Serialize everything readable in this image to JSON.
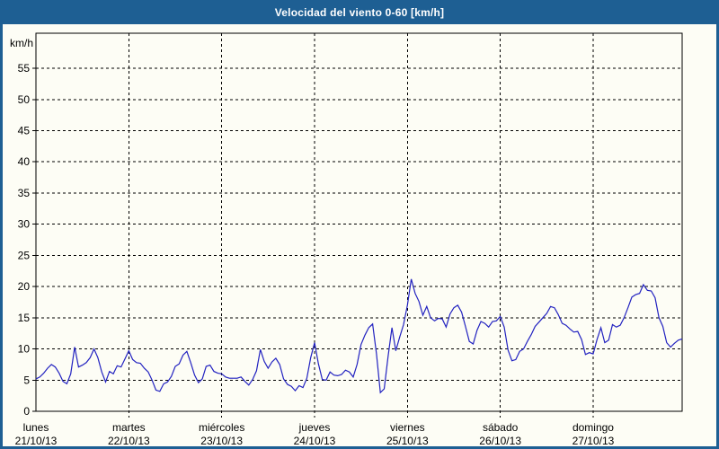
{
  "window": {
    "title": "Velocidad del viento 0-60 [km/h]"
  },
  "colors": {
    "frame": "#1E5F93",
    "title_text": "#FFFFFF",
    "chart_background": "#FDFDF5",
    "axis": "#000000",
    "grid": "#000000",
    "label_text": "#000000",
    "series_line": "#2222C0"
  },
  "chart_data": {
    "type": "line",
    "title": "Velocidad del viento 0-60 [km/h]",
    "ylabel": "km/h",
    "ylim": [
      0,
      60
    ],
    "yticks": [
      0,
      5,
      10,
      15,
      20,
      25,
      30,
      35,
      40,
      45,
      50,
      55
    ],
    "grid": "dashed",
    "legend_position": "none",
    "x_unit": "hours, one sample per hour, 7 days",
    "days": [
      {
        "name": "lunes",
        "date": "21/10/13",
        "values": [
          5.2,
          5.5,
          6.1,
          6.9,
          7.5,
          7.1,
          6.1,
          4.8,
          4.4,
          6.0,
          10.3,
          7.1,
          7.4,
          7.8,
          8.6,
          10.0,
          8.6,
          6.3,
          4.7,
          6.4,
          6.0,
          7.3,
          7.1,
          8.4
        ]
      },
      {
        "name": "martes",
        "date": "22/10/13",
        "values": [
          9.7,
          8.3,
          7.8,
          7.7,
          6.9,
          6.3,
          5.0,
          3.4,
          3.2,
          4.4,
          4.7,
          5.6,
          7.2,
          7.6,
          9.0,
          9.6,
          7.8,
          5.8,
          4.6,
          5.2,
          7.2,
          7.4,
          6.4,
          6.1
        ]
      },
      {
        "name": "miércoles",
        "date": "23/10/13",
        "values": [
          6.0,
          5.5,
          5.3,
          5.3,
          5.3,
          5.5,
          4.8,
          4.2,
          5.1,
          6.5,
          9.9,
          8.0,
          6.9,
          7.9,
          8.5,
          7.5,
          5.2,
          4.3,
          4.0,
          3.3,
          4.1,
          3.8,
          5.3,
          8.6
        ]
      },
      {
        "name": "jueves",
        "date": "24/10/13",
        "values": [
          11.0,
          7.6,
          5.1,
          5.0,
          6.3,
          5.8,
          5.7,
          5.9,
          6.6,
          6.3,
          5.5,
          7.5,
          10.7,
          12.2,
          13.4,
          14.0,
          9.2,
          3.0,
          3.6,
          8.8,
          13.4,
          9.7,
          11.9,
          13.9
        ]
      },
      {
        "name": "viernes",
        "date": "25/10/13",
        "values": [
          17.0,
          21.2,
          18.9,
          17.6,
          15.4,
          16.8,
          15.0,
          14.5,
          14.9,
          14.8,
          13.5,
          15.6,
          16.6,
          17.0,
          15.9,
          13.6,
          11.2,
          10.8,
          13.0,
          14.4,
          14.1,
          13.5,
          14.4,
          14.5
        ]
      },
      {
        "name": "sábado",
        "date": "26/10/13",
        "values": [
          15.2,
          13.5,
          9.8,
          8.1,
          8.3,
          9.6,
          10.0,
          11.2,
          12.3,
          13.6,
          14.3,
          15.0,
          15.7,
          16.8,
          16.6,
          15.5,
          14.1,
          13.8,
          13.2,
          12.7,
          12.8,
          11.5,
          9.1,
          9.4
        ]
      },
      {
        "name": "domingo",
        "date": "27/10/13",
        "values": [
          9.2,
          11.5,
          13.4,
          11.0,
          11.4,
          13.9,
          13.5,
          13.8,
          15.0,
          16.6,
          18.3,
          18.7,
          18.9,
          20.3,
          19.4,
          19.3,
          18.2,
          15.0,
          13.6,
          11.0,
          10.3,
          10.9,
          11.4,
          11.6
        ]
      }
    ]
  }
}
